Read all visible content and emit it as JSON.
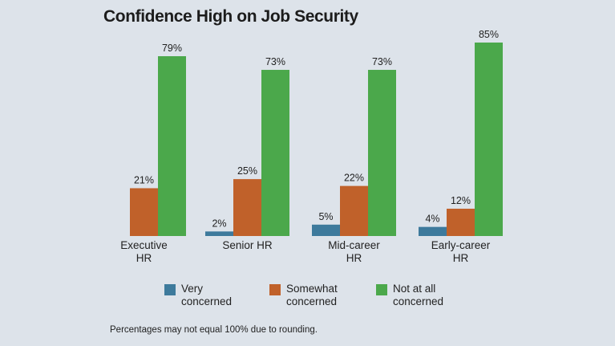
{
  "chart_data": {
    "type": "bar",
    "title": "Confidence High on Job Security",
    "categories": [
      [
        "Executive",
        "HR"
      ],
      [
        "Senior HR"
      ],
      [
        "Mid-career",
        "HR"
      ],
      [
        "Early-career",
        "HR"
      ]
    ],
    "series": [
      {
        "name": "Very concerned",
        "legend_lines": [
          "Very",
          "concerned"
        ],
        "color": "#3d7a9c",
        "values": [
          null,
          2,
          5,
          4
        ],
        "labels": [
          "",
          "2%",
          "5%",
          "4%"
        ]
      },
      {
        "name": "Somewhat concerned",
        "legend_lines": [
          "Somewhat",
          "concerned"
        ],
        "color": "#c0612a",
        "values": [
          21,
          25,
          22,
          12
        ],
        "labels": [
          "21%",
          "25%",
          "22%",
          "12%"
        ]
      },
      {
        "name": "Not at all concerned",
        "legend_lines": [
          "Not at all",
          "concerned"
        ],
        "color": "#4ba84b",
        "values": [
          79,
          73,
          73,
          85
        ],
        "labels": [
          "79%",
          "73%",
          "73%",
          "85%"
        ]
      }
    ],
    "ylim": [
      0,
      85
    ],
    "grid": false,
    "legend_position": "bottom"
  },
  "footnote": "Percentages may not equal 100% due to rounding."
}
